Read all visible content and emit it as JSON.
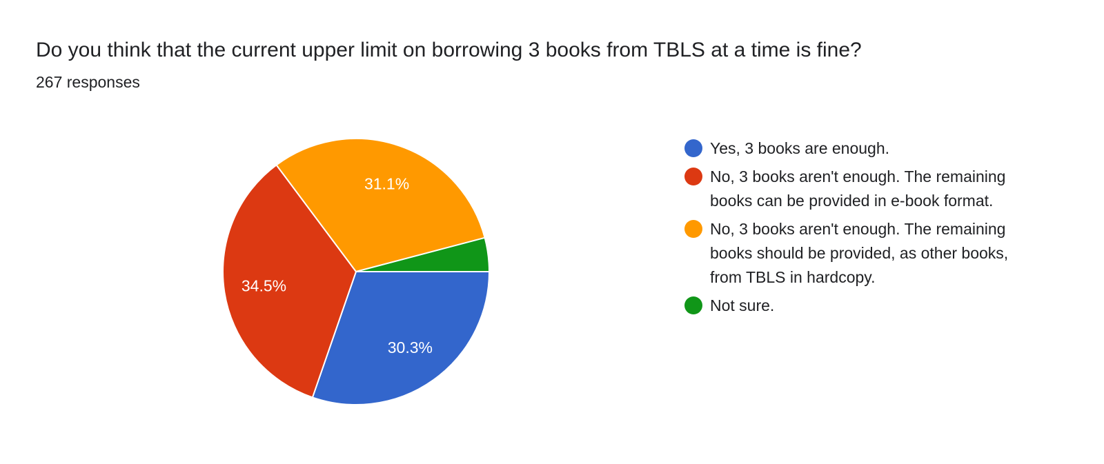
{
  "chart_data": {
    "type": "pie",
    "title": "Do you think that the current upper limit on borrowing 3 books from TBLS at a time is fine?",
    "subtitle": "267 responses",
    "legend_position": "right",
    "slices": [
      {
        "label": "Yes, 3 books are enough.",
        "value": 30.3,
        "display": "30.3%",
        "color": "#3366cc"
      },
      {
        "label": "No, 3 books aren't enough. The remaining books can be provided in e-book format.",
        "value": 34.5,
        "display": "34.5%",
        "color": "#dc3912"
      },
      {
        "label": "No, 3 books aren't enough. The remaining books should be provided, as other books, from TBLS in hardcopy.",
        "value": 31.1,
        "display": "31.1%",
        "color": "#ff9900"
      },
      {
        "label": "Not sure.",
        "value": 4.1,
        "display": "",
        "color": "#109618"
      }
    ]
  }
}
